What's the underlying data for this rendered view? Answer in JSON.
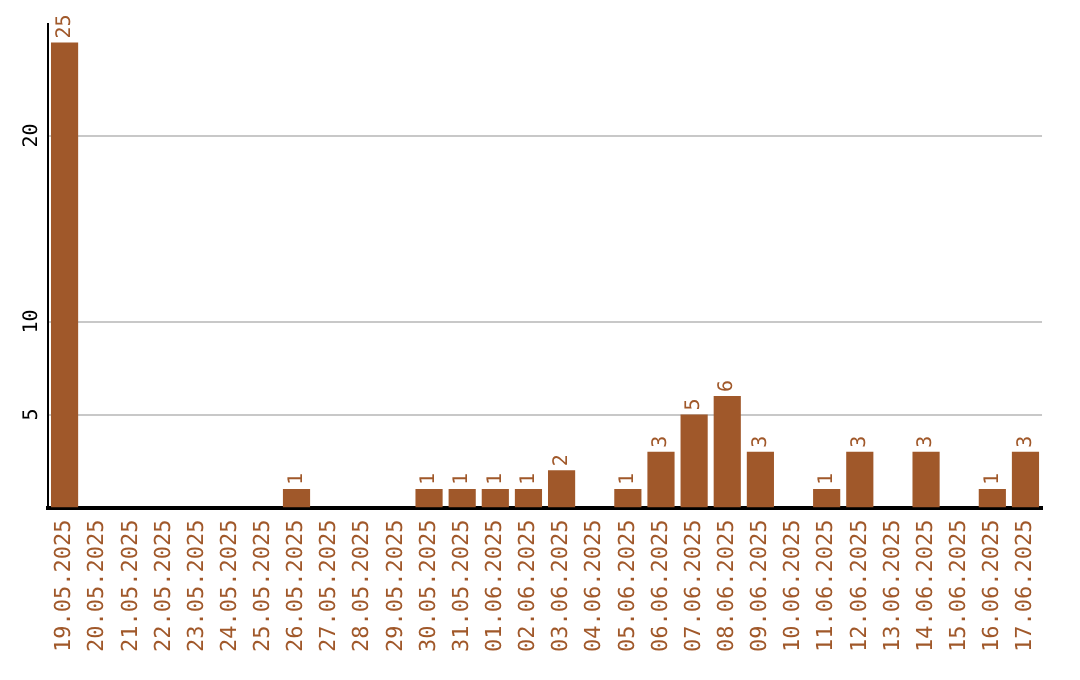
{
  "chart_data": {
    "type": "bar",
    "categories": [
      "19.05.2025",
      "20.05.2025",
      "21.05.2025",
      "22.05.2025",
      "23.05.2025",
      "24.05.2025",
      "25.05.2025",
      "26.05.2025",
      "27.05.2025",
      "28.05.2025",
      "29.05.2025",
      "30.05.2025",
      "31.05.2025",
      "01.06.2025",
      "02.06.2025",
      "03.06.2025",
      "04.06.2025",
      "05.06.2025",
      "06.06.2025",
      "07.06.2025",
      "08.06.2025",
      "09.06.2025",
      "10.06.2025",
      "11.06.2025",
      "12.06.2025",
      "13.06.2025",
      "14.06.2025",
      "15.06.2025",
      "16.06.2025",
      "17.06.2025"
    ],
    "values": [
      25,
      0,
      0,
      0,
      0,
      0,
      0,
      1,
      0,
      0,
      0,
      1,
      1,
      1,
      1,
      2,
      0,
      1,
      3,
      5,
      6,
      3,
      0,
      1,
      3,
      0,
      3,
      0,
      1,
      3
    ],
    "value_labels": [
      "25",
      null,
      null,
      null,
      null,
      null,
      null,
      "1",
      null,
      null,
      null,
      "1",
      "1",
      "1",
      "1",
      "2",
      null,
      "1",
      "3",
      "5",
      "6",
      "3",
      null,
      "1",
      "3",
      null,
      "3",
      null,
      "1",
      "3"
    ],
    "color": "#a0582a",
    "ylim": [
      0,
      26
    ],
    "yticks": [
      5,
      10,
      20
    ],
    "grid": "y"
  }
}
